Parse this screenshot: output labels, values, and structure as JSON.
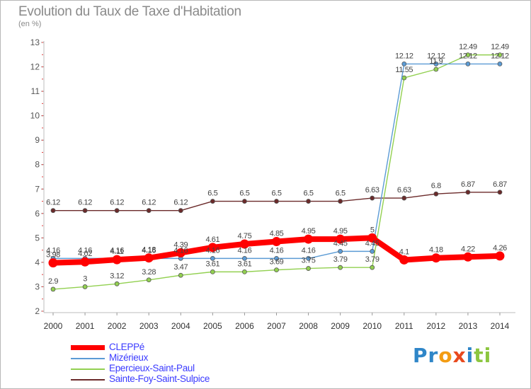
{
  "page": {
    "title": "Evolution du Taux de Taxe d'Habitation",
    "subtitle": "(en %)"
  },
  "logo": {
    "text": "Proxiti",
    "letters": [
      {
        "ch": "P",
        "color": "#2f86c8"
      },
      {
        "ch": "r",
        "color": "#2f86c8"
      },
      {
        "ch": "o",
        "color": "#f39c12"
      },
      {
        "ch": "x",
        "color": "#e8491d"
      },
      {
        "ch": "i",
        "color": "#2f86c8"
      },
      {
        "ch": "t",
        "color": "#8cc63f"
      },
      {
        "ch": "i",
        "color": "#8cc63f"
      }
    ]
  },
  "chart_data": {
    "type": "line",
    "title": "Evolution du Taux de Taxe d'Habitation",
    "ylabel": "(en %)",
    "x": [
      "2000",
      "2001",
      "2002",
      "2003",
      "2004",
      "2005",
      "2006",
      "2007",
      "2008",
      "2009",
      "2010",
      "2011",
      "2012",
      "2013",
      "2014"
    ],
    "ylim": [
      2,
      13
    ],
    "yticks": [
      2,
      3,
      4,
      5,
      6,
      7,
      8,
      9,
      10,
      11,
      12,
      13
    ],
    "grid": false,
    "legend_position": "bottom-left",
    "series": [
      {
        "name": "Sainte-Foy-Saint-Sulpice",
        "color": "#6b2a2a",
        "style": "thin",
        "values": [
          6.12,
          6.12,
          6.12,
          6.12,
          6.12,
          6.5,
          6.5,
          6.5,
          6.5,
          6.5,
          6.63,
          6.63,
          6.8,
          6.87,
          6.87
        ],
        "labels": [
          "6.12",
          "6.12",
          "6.12",
          "6.12",
          "6.12",
          "6.5",
          "6.5",
          "6.5",
          "6.5",
          "6.5",
          "6.63",
          "6.63",
          "6.8",
          "6.87",
          "6.87"
        ]
      },
      {
        "name": "Epercieux-Saint-Paul",
        "color": "#92d050",
        "style": "thin",
        "values": [
          2.9,
          3,
          3.12,
          3.28,
          3.47,
          3.61,
          3.61,
          3.69,
          3.75,
          3.79,
          3.79,
          11.55,
          11.9,
          12.49,
          12.49
        ],
        "labels": [
          "2.9",
          "3",
          "3.12",
          "3.28",
          "3.47",
          "3.61",
          "3.61",
          "3.69",
          "3.75",
          "3.79",
          "3.79",
          "11.55",
          "11.9",
          "12.49",
          "12.49"
        ]
      },
      {
        "name": "Mizérieux",
        "color": "#5b9bd5",
        "style": "thin",
        "values": [
          4.16,
          4.16,
          4.16,
          4.16,
          4.16,
          4.16,
          4.16,
          4.16,
          4.16,
          4.45,
          4.45,
          12.12,
          12.12,
          12.12,
          12.12
        ],
        "labels": [
          "4.16",
          "4.16",
          "4.16",
          "4.16",
          "4.16",
          "4.16",
          "4.16",
          "4.16",
          "4.16",
          "4.45",
          "4.45",
          "12.12",
          "12.12",
          "12.12",
          "12.12"
        ]
      },
      {
        "name": "CLEPPé",
        "color": "#ff0000",
        "style": "thick",
        "values": [
          3.98,
          4.02,
          4.11,
          4.18,
          4.39,
          4.61,
          4.75,
          4.85,
          4.95,
          4.95,
          5,
          4.1,
          4.18,
          4.22,
          4.26
        ],
        "labels": [
          "3.98",
          "4.02",
          "4.11",
          "4.18",
          "4.39",
          "4.61",
          "4.75",
          "4.85",
          "4.95",
          "4.95",
          "5",
          "4.1",
          "4.18",
          "4.22",
          "4.26"
        ]
      }
    ]
  },
  "legend": [
    {
      "label": "CLEPPé",
      "color": "#ff0000",
      "thick": true
    },
    {
      "label": "Mizérieux",
      "color": "#5b9bd5",
      "thick": false
    },
    {
      "label": "Epercieux-Saint-Paul",
      "color": "#92d050",
      "thick": false
    },
    {
      "label": "Sainte-Foy-Saint-Sulpice",
      "color": "#6b2a2a",
      "thick": false
    }
  ]
}
